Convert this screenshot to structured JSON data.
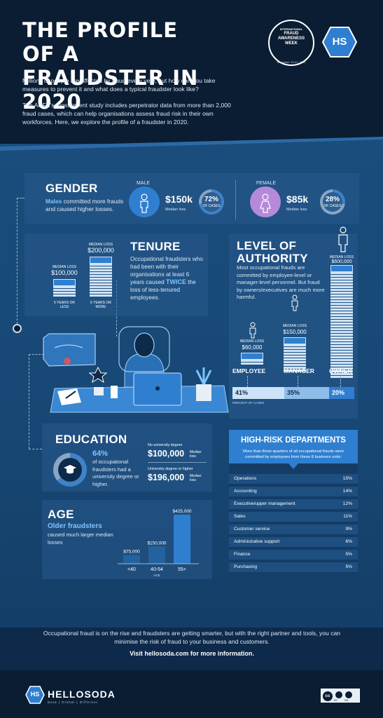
{
  "header": {
    "title_line1": "THE PROFILE OF A",
    "title_line2": "FRAUDSTER IN 2020",
    "intro1": "Millions of people are affected by fraud every year, but how can you take measures to prevent it and what does a typical fraudster look like?",
    "intro2": "The ACFE's most recent study includes perpetrator data from more than 2,000 fraud cases, which can help organisations assess fraud risk in their own workforces. Here, we explore the profile of a fraudster in 2020.",
    "faw_line1": "INTERNATIONAL",
    "faw_line2": "FRAUD",
    "faw_line3": "AWARENESS",
    "faw_line4": "WEEK",
    "faw_date": "November 15-21, 2020",
    "hs_logo_text": "HS"
  },
  "gender": {
    "title": "GENDER",
    "desc_accent": "Males",
    "desc_rest": " committed more frauds and caused higher losses.",
    "male_label": "MALE",
    "male_loss": "$150k",
    "male_loss_label": "Median loss",
    "male_pct": "72%",
    "male_pct_label": "OF CASES",
    "female_label": "FEMALE",
    "female_loss": "$85k",
    "female_loss_label": "Median loss",
    "female_pct": "28%",
    "female_pct_label": "OF CASES"
  },
  "tenure": {
    "title": "TENURE",
    "desc_1": "Occupational fraudsters who had been with their organisations at least 6 years caused ",
    "desc_accent": "TWICE",
    "desc_2": " the loss of less-tenured employees.",
    "left_label": "MEDIAN LOSS",
    "left_value": "$100,000",
    "left_caption": "5 YEARS OR LESS",
    "right_label": "MEDIAN LOSS",
    "right_value": "$200,000",
    "right_caption": "6 YEARS OR MORE"
  },
  "authority": {
    "title_line1": "LEVEL OF",
    "title_line2": "AUTHORITY",
    "desc": "Most occupational frauds are committed by employee-level or manager-level personnel. But fraud by owners/executives are much more harmful.",
    "employee_label": "MEDIAN LOSS",
    "employee_value": "$60,000",
    "manager_label": "MEDIAN LOSS",
    "manager_value": "$150,000",
    "owner_label": "MEDIAN LOSS",
    "owner_value": "$600,000",
    "cat_employee": "EMPLOYEE",
    "cat_manager": "MANAGER",
    "cat_owner": "OWNER",
    "pct_employee": "41%",
    "pct_manager": "35%",
    "pct_owner": "20%",
    "pct_caption": "PERCENT OF CASES"
  },
  "education": {
    "title": "EDUCATION",
    "pct": "64%",
    "desc": "of occupational fraudsters had a university degree or higher.",
    "no_degree_label": "No university degree",
    "no_degree_value": "$100,000",
    "no_degree_suffix": "Median loss",
    "degree_label": "University degree or higher",
    "degree_value": "$196,000",
    "degree_suffix": "Median loss"
  },
  "age": {
    "title": "AGE",
    "desc_accent": "Older fraudsters",
    "desc_rest": "caused much larger median losses",
    "axis_label": "AGE"
  },
  "chart_data": {
    "type": "bar",
    "categories": [
      "<40",
      "40-54",
      "55+"
    ],
    "values": [
      75000,
      150000,
      425000
    ],
    "value_labels": [
      "$75,000",
      "$150,000",
      "$425,000"
    ],
    "xlabel": "AGE",
    "ylabel": "",
    "ylim": [
      0,
      425000
    ]
  },
  "departments": {
    "title": "HIGH-RISK DEPARTMENTS",
    "desc": "More than three-quarters of all occupational frauds were committed by employees from these 8 business units:",
    "items": [
      {
        "name": "Operations",
        "pct": "15%"
      },
      {
        "name": "Accounting",
        "pct": "14%"
      },
      {
        "name": "Executive/upper management",
        "pct": "12%"
      },
      {
        "name": "Sales",
        "pct": "11%"
      },
      {
        "name": "Customer service",
        "pct": "9%"
      },
      {
        "name": "Administrative support",
        "pct": "6%"
      },
      {
        "name": "Finance",
        "pct": "5%"
      },
      {
        "name": "Purchasing",
        "pct": "5%"
      }
    ]
  },
  "footer": {
    "text": "Occupational fraud is on the rise and fraudsters are getting smarter, but with the right partner and tools, you can minimise the risk of fraud to your business and customers.",
    "visit": "Visit hellosoda.com for more information.",
    "brand_hs": "HS",
    "brand": "HELLOSODA",
    "tagline": "Data | Global | Different",
    "cc": "cc",
    "cc_by": "BY",
    "cc_sa": "SA"
  },
  "colors": {
    "bg_dark": "#0a1d33",
    "bg_band": "#1a4d7c",
    "accent": "#7fc4ff",
    "bar": "#3f82c7",
    "female": "#b48ad9",
    "male": "#2f7fd0"
  }
}
